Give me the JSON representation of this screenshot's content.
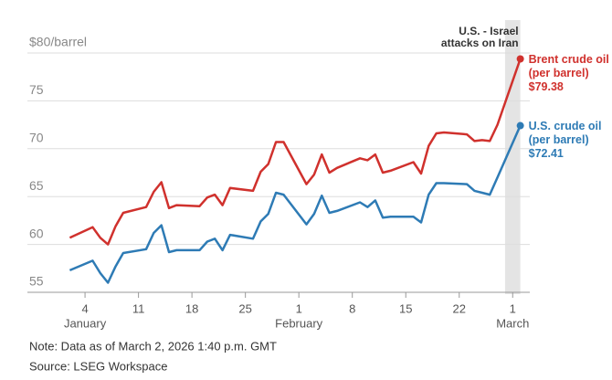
{
  "chart_data": {
    "type": "line",
    "annotation": [
      "U.S. - Israel",
      "attacks on Iran"
    ],
    "shade": [
      "2026-02-28",
      "2026-03-02"
    ],
    "note": "Note: Data as of March 2, 2026 1:40 p.m. GMT",
    "source": "Source: LSEG Workspace",
    "x": [
      "2026-01-02",
      "2026-01-05",
      "2026-01-06",
      "2026-01-07",
      "2026-01-08",
      "2026-01-09",
      "2026-01-12",
      "2026-01-13",
      "2026-01-14",
      "2026-01-15",
      "2026-01-16",
      "2026-01-19",
      "2026-01-20",
      "2026-01-21",
      "2026-01-22",
      "2026-01-23",
      "2026-01-26",
      "2026-01-27",
      "2026-01-28",
      "2026-01-29",
      "2026-01-30",
      "2026-02-02",
      "2026-02-03",
      "2026-02-04",
      "2026-02-05",
      "2026-02-06",
      "2026-02-09",
      "2026-02-10",
      "2026-02-11",
      "2026-02-12",
      "2026-02-13",
      "2026-02-16",
      "2026-02-17",
      "2026-02-18",
      "2026-02-19",
      "2026-02-20",
      "2026-02-23",
      "2026-02-24",
      "2026-02-25",
      "2026-02-26",
      "2026-02-27",
      "2026-03-02"
    ],
    "series": [
      {
        "name": "Brent crude oil",
        "unit": "(per barrel)",
        "end_label": "$79.38",
        "color": "#d0312d",
        "values": [
          60.7,
          61.8,
          60.7,
          60.0,
          61.9,
          63.3,
          63.9,
          65.5,
          66.5,
          63.8,
          64.1,
          64.0,
          64.9,
          65.2,
          64.1,
          65.9,
          65.6,
          67.6,
          68.4,
          70.7,
          70.7,
          66.3,
          67.3,
          69.4,
          67.5,
          68.0,
          69.0,
          68.8,
          69.4,
          67.5,
          67.7,
          68.6,
          67.4,
          70.3,
          71.6,
          71.7,
          71.5,
          70.8,
          70.9,
          70.8,
          72.5,
          79.38
        ]
      },
      {
        "name": "U.S. crude oil",
        "unit": "(per barrel)",
        "end_label": "$72.41",
        "color": "#2e7bb5",
        "values": [
          57.3,
          58.3,
          57.0,
          56.0,
          57.7,
          59.1,
          59.5,
          61.2,
          62.0,
          59.2,
          59.4,
          59.4,
          60.3,
          60.6,
          59.4,
          61.0,
          60.6,
          62.4,
          63.2,
          65.4,
          65.2,
          62.1,
          63.2,
          65.1,
          63.3,
          63.5,
          64.4,
          63.9,
          64.6,
          62.8,
          62.9,
          62.9,
          62.3,
          65.2,
          66.4,
          66.4,
          66.3,
          65.6,
          65.4,
          65.2,
          67.0,
          72.41
        ]
      }
    ],
    "xlim": [
      "2026-01-01",
      "2026-03-03"
    ],
    "xticks": [
      {
        "value": "2026-01-04",
        "label": "4"
      },
      {
        "value": "2026-01-11",
        "label": "11"
      },
      {
        "value": "2026-01-18",
        "label": "18"
      },
      {
        "value": "2026-01-25",
        "label": "25"
      },
      {
        "value": "2026-02-01",
        "label": "1"
      },
      {
        "value": "2026-02-08",
        "label": "8"
      },
      {
        "value": "2026-02-15",
        "label": "15"
      },
      {
        "value": "2026-02-22",
        "label": "22"
      },
      {
        "value": "2026-03-01",
        "label": "1"
      }
    ],
    "month_labels": [
      {
        "value": "2026-01-04",
        "label": "January"
      },
      {
        "value": "2026-02-01",
        "label": "February"
      },
      {
        "value": "2026-03-01",
        "label": "March"
      }
    ],
    "ylim": [
      55,
      80
    ],
    "yticks": [
      55,
      60,
      65,
      70,
      75,
      {
        "value": 80,
        "label": "$80/barrel"
      }
    ],
    "grid": true
  }
}
